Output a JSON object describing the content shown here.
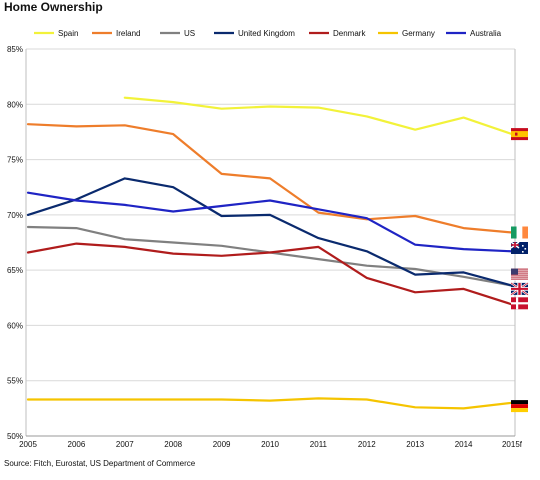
{
  "title": "Home Ownership",
  "source": "Source: Fitch, Eurostat, US Department of Commerce",
  "chart_data": {
    "type": "line",
    "title": "Home Ownership",
    "xlabel": "",
    "ylabel": "",
    "x": [
      "2005",
      "2006",
      "2007",
      "2008",
      "2009",
      "2010",
      "2011",
      "2012",
      "2013",
      "2014",
      "2015f"
    ],
    "yticks": [
      "50%",
      "55%",
      "60%",
      "65%",
      "70%",
      "75%",
      "80%",
      "85%"
    ],
    "ylim": [
      50,
      85
    ],
    "grid": "horizontal",
    "legend": "top",
    "series": [
      {
        "name": "Spain",
        "color": "#f2f23a",
        "flag": "flag-spain",
        "values": [
          null,
          null,
          80.6,
          80.2,
          79.6,
          79.8,
          79.7,
          78.9,
          77.7,
          78.8,
          77.3
        ]
      },
      {
        "name": "Ireland",
        "color": "#ee7d2b",
        "flag": "flag-ireland",
        "values": [
          78.2,
          78.0,
          78.1,
          77.3,
          73.7,
          73.3,
          70.2,
          69.6,
          69.9,
          68.8,
          68.4
        ]
      },
      {
        "name": "US",
        "color": "#808080",
        "flag": "flag-us",
        "values": [
          68.9,
          68.8,
          67.8,
          67.5,
          67.2,
          66.6,
          66.0,
          65.4,
          65.1,
          64.4,
          63.6
        ]
      },
      {
        "name": "United Kingdom",
        "color": "#0a2a6e",
        "flag": "flag-uk",
        "values": [
          70.0,
          71.4,
          73.3,
          72.5,
          69.9,
          70.0,
          67.9,
          66.7,
          64.6,
          64.8,
          63.6
        ]
      },
      {
        "name": "Denmark",
        "color": "#b01c1c",
        "flag": "flag-denmark",
        "values": [
          66.6,
          67.4,
          67.1,
          66.5,
          66.3,
          66.6,
          67.1,
          64.3,
          63.0,
          63.3,
          61.9
        ]
      },
      {
        "name": "Germany",
        "color": "#f5c400",
        "flag": "flag-germany",
        "values": [
          53.3,
          53.3,
          53.3,
          53.3,
          53.3,
          53.2,
          53.4,
          53.3,
          52.6,
          52.5,
          53.0
        ]
      },
      {
        "name": "Australia",
        "color": "#1f24c4",
        "flag": "flag-australia",
        "values": [
          72.0,
          71.3,
          70.9,
          70.3,
          70.8,
          71.3,
          70.5,
          69.7,
          67.3,
          66.9,
          66.7
        ]
      }
    ]
  }
}
